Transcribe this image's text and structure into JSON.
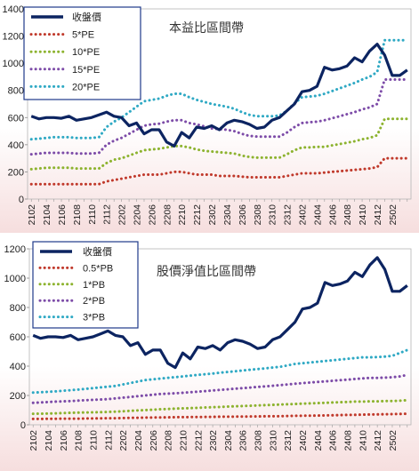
{
  "colors": {
    "price": "#0c2461",
    "band1": "#c0392b",
    "band2": "#8db32f",
    "band3": "#7d4ca8",
    "band4": "#2fa9c4"
  },
  "chart_data": [
    {
      "type": "line",
      "title": "本益比區間帶",
      "ylim": [
        0,
        1400
      ],
      "yticks": [
        0,
        200,
        400,
        600,
        800,
        1000,
        1200,
        1400
      ],
      "x_tick_labels": [
        "2102",
        "2104",
        "2106",
        "2108",
        "2110",
        "2112",
        "2202",
        "2204",
        "2206",
        "2208",
        "2210",
        "2212",
        "2302",
        "2304",
        "2306",
        "2308",
        "2310",
        "2312",
        "2402",
        "2404",
        "2406",
        "2408",
        "2410",
        "2412",
        "2502"
      ],
      "series": [
        {
          "name": "收盤價",
          "style": "solid",
          "color_key": "price",
          "values": [
            610,
            590,
            600,
            600,
            595,
            610,
            580,
            590,
            600,
            620,
            640,
            610,
            600,
            540,
            560,
            480,
            510,
            510,
            420,
            390,
            490,
            450,
            530,
            520,
            540,
            510,
            560,
            580,
            570,
            550,
            520,
            530,
            580,
            600,
            650,
            700,
            790,
            800,
            830,
            970,
            950,
            960,
            980,
            1040,
            1010,
            1090,
            1140,
            1060,
            910,
            910,
            950
          ]
        },
        {
          "name": "5*PE",
          "style": "dotted",
          "color_key": "band1",
          "values": [
            110,
            110,
            110,
            110,
            110,
            110,
            110,
            110,
            110,
            110,
            130,
            140,
            150,
            160,
            170,
            180,
            180,
            180,
            190,
            200,
            200,
            190,
            180,
            180,
            180,
            170,
            170,
            170,
            165,
            160,
            160,
            160,
            160,
            160,
            170,
            180,
            190,
            190,
            190,
            195,
            200,
            205,
            210,
            215,
            220,
            225,
            235,
            300,
            300,
            300,
            300
          ]
        },
        {
          "name": "10*PE",
          "style": "dotted",
          "color_key": "band2",
          "values": [
            220,
            225,
            230,
            230,
            230,
            230,
            225,
            225,
            225,
            225,
            265,
            290,
            300,
            320,
            340,
            360,
            365,
            370,
            380,
            390,
            390,
            380,
            365,
            355,
            350,
            345,
            340,
            335,
            320,
            310,
            305,
            305,
            305,
            305,
            330,
            360,
            380,
            380,
            385,
            385,
            395,
            405,
            415,
            425,
            440,
            450,
            470,
            590,
            590,
            590,
            590
          ]
        },
        {
          "name": "15*PE",
          "style": "dotted",
          "color_key": "band3",
          "values": [
            330,
            335,
            340,
            340,
            340,
            340,
            335,
            335,
            335,
            340,
            400,
            430,
            450,
            480,
            510,
            540,
            550,
            555,
            570,
            580,
            580,
            560,
            550,
            535,
            520,
            515,
            510,
            500,
            480,
            465,
            460,
            460,
            460,
            460,
            490,
            530,
            560,
            565,
            570,
            580,
            595,
            610,
            625,
            640,
            660,
            675,
            700,
            880,
            880,
            880,
            880
          ]
        },
        {
          "name": "20*PE",
          "style": "dotted",
          "color_key": "band4",
          "values": [
            440,
            445,
            450,
            455,
            455,
            455,
            450,
            450,
            450,
            455,
            530,
            570,
            600,
            640,
            680,
            720,
            730,
            740,
            760,
            775,
            775,
            750,
            730,
            715,
            700,
            690,
            680,
            665,
            640,
            620,
            610,
            610,
            610,
            615,
            650,
            705,
            750,
            755,
            760,
            775,
            795,
            815,
            835,
            855,
            880,
            900,
            935,
            1170,
            1170,
            1170,
            1170
          ]
        }
      ]
    },
    {
      "type": "line",
      "title": "股價淨值比區間帶",
      "ylim": [
        0,
        1200
      ],
      "yticks": [
        0,
        200,
        400,
        600,
        800,
        1000,
        1200
      ],
      "x_tick_labels": [
        "2102",
        "2104",
        "2106",
        "2108",
        "2110",
        "2112",
        "2202",
        "2204",
        "2206",
        "2208",
        "2210",
        "2212",
        "2302",
        "2304",
        "2306",
        "2308",
        "2310",
        "2312",
        "2402",
        "2404",
        "2406",
        "2408",
        "2410",
        "2412",
        "2502"
      ],
      "series": [
        {
          "name": "收盤價",
          "style": "solid",
          "color_key": "price",
          "values": [
            610,
            590,
            600,
            600,
            595,
            610,
            580,
            590,
            600,
            620,
            640,
            610,
            600,
            540,
            560,
            480,
            510,
            510,
            420,
            390,
            490,
            450,
            530,
            520,
            540,
            510,
            560,
            580,
            570,
            550,
            520,
            530,
            580,
            600,
            650,
            700,
            790,
            800,
            830,
            970,
            950,
            960,
            980,
            1040,
            1010,
            1090,
            1140,
            1060,
            910,
            910,
            950
          ]
        },
        {
          "name": "0.5*PB",
          "style": "dotted",
          "color_key": "band1",
          "values": [
            40,
            40,
            41,
            41,
            42,
            42,
            42,
            43,
            43,
            44,
            45,
            45,
            46,
            47,
            48,
            49,
            50,
            50,
            51,
            52,
            52,
            53,
            53,
            54,
            54,
            55,
            55,
            56,
            56,
            57,
            57,
            58,
            58,
            59,
            60,
            61,
            62,
            62,
            63,
            64,
            65,
            66,
            67,
            68,
            69,
            70,
            71,
            72,
            73,
            74,
            76
          ]
        },
        {
          "name": "1*PB",
          "style": "dotted",
          "color_key": "band2",
          "values": [
            75,
            76,
            77,
            78,
            80,
            82,
            83,
            84,
            85,
            86,
            88,
            90,
            92,
            95,
            98,
            100,
            103,
            106,
            108,
            110,
            112,
            114,
            116,
            118,
            120,
            122,
            124,
            126,
            128,
            130,
            132,
            134,
            136,
            138,
            140,
            142,
            144,
            146,
            148,
            150,
            152,
            154,
            156,
            158,
            158,
            160,
            160,
            162,
            162,
            164,
            168
          ]
        },
        {
          "name": "2*PB",
          "style": "dotted",
          "color_key": "band3",
          "values": [
            150,
            152,
            155,
            158,
            160,
            162,
            165,
            168,
            170,
            172,
            175,
            180,
            185,
            190,
            195,
            200,
            205,
            210,
            212,
            215,
            218,
            222,
            226,
            230,
            234,
            238,
            242,
            246,
            250,
            254,
            258,
            262,
            266,
            270,
            275,
            280,
            284,
            288,
            292,
            296,
            300,
            304,
            308,
            312,
            316,
            320,
            320,
            322,
            324,
            330,
            340
          ]
        },
        {
          "name": "3*PB",
          "style": "dotted",
          "color_key": "band4",
          "values": [
            220,
            222,
            225,
            228,
            232,
            236,
            240,
            245,
            250,
            255,
            260,
            265,
            275,
            285,
            295,
            305,
            310,
            315,
            320,
            325,
            330,
            335,
            340,
            345,
            350,
            355,
            360,
            365,
            370,
            375,
            380,
            385,
            390,
            395,
            405,
            415,
            420,
            425,
            430,
            435,
            440,
            445,
            450,
            455,
            460,
            460,
            462,
            465,
            470,
            490,
            510
          ]
        }
      ]
    }
  ]
}
